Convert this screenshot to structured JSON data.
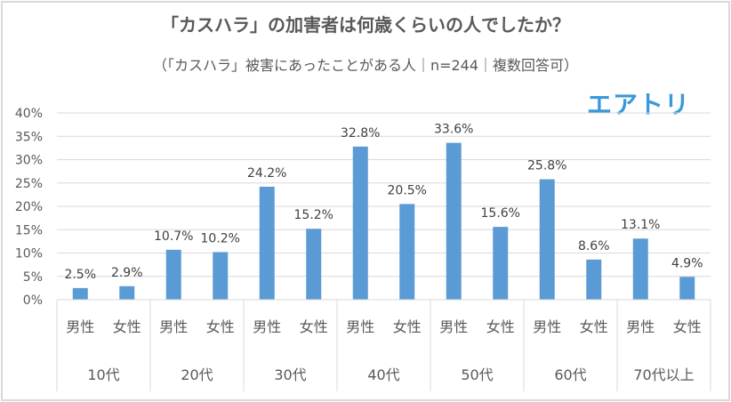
{
  "title": "「カスハラ」の加害者は何歳くらいの人でしたか？",
  "subtitle": "（「カスハラ」被害にあったことがある人｜n=244｜複数回答可）",
  "logo": "エアトリ",
  "colors": {
    "bar": "#5b9bd5",
    "grid": "#d9d9d9",
    "text": "#595959",
    "logo": "#3a9ad9"
  },
  "chart_data": {
    "type": "bar",
    "title": "「カスハラ」の加害者は何歳くらいの人でしたか？",
    "groups": [
      "10代",
      "20代",
      "30代",
      "40代",
      "50代",
      "60代",
      "70代以上"
    ],
    "subcategories": [
      "男性",
      "女性"
    ],
    "values": [
      2.5,
      2.9,
      10.7,
      10.2,
      24.2,
      15.2,
      32.8,
      20.5,
      33.6,
      15.6,
      25.8,
      8.6,
      13.1,
      4.9
    ],
    "data_labels": [
      "2.5%",
      "2.9%",
      "10.7%",
      "10.2%",
      "24.2%",
      "15.2%",
      "32.8%",
      "20.5%",
      "33.6%",
      "15.6%",
      "25.8%",
      "8.6%",
      "13.1%",
      "4.9%"
    ],
    "yticks": [
      "0%",
      "5%",
      "10%",
      "15%",
      "20%",
      "25%",
      "30%",
      "35%",
      "40%"
    ],
    "ylim": [
      0,
      40
    ],
    "grid": true,
    "legend": "none"
  }
}
